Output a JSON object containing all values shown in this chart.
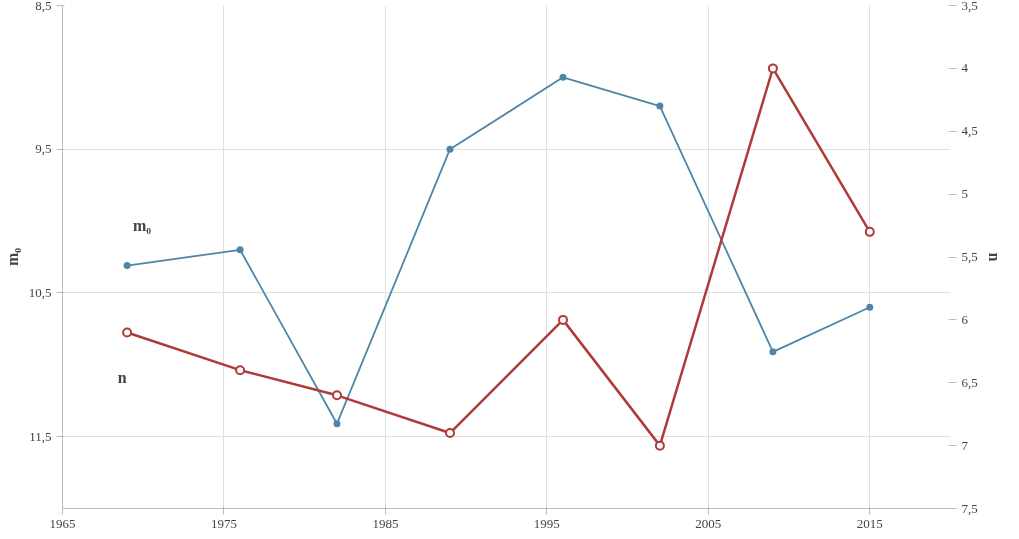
{
  "chart_data": {
    "type": "line",
    "ylabel": "m₀",
    "y2label": "n",
    "x": [
      1969,
      1976,
      1982,
      1989,
      1996,
      2002,
      2009,
      2015
    ],
    "series": [
      {
        "name": "m₀",
        "color": "#4f86a8",
        "values": [
          10.31,
          10.2,
          11.41,
          9.5,
          9.0,
          9.2,
          10.91,
          10.6
        ],
        "marker": "circle"
      },
      {
        "name": "n",
        "color": "#b03a3a",
        "values": [
          6.1,
          6.4,
          6.6,
          6.9,
          6.0,
          7.0,
          4.0,
          5.3
        ],
        "axis": "y2",
        "marker": "circle"
      }
    ],
    "xlim": [
      1965,
      2020
    ],
    "xticks": [
      1965,
      1975,
      1985,
      1995,
      2005,
      2015
    ],
    "ylim": [
      12,
      8.5
    ],
    "yticks": [
      {
        "value": 8.5,
        "label": "8,5"
      },
      {
        "value": 9.5,
        "label": "9,5"
      },
      {
        "value": 10.5,
        "label": "10,5"
      },
      {
        "value": 11.5,
        "label": "11,5"
      }
    ],
    "y2lim": [
      7.5,
      3.5
    ],
    "y2ticks": [
      {
        "value": 3.5,
        "label": "3,5"
      },
      4,
      {
        "value": 4.5,
        "label": "4,5"
      },
      5,
      {
        "value": 5.5,
        "label": "5,5"
      },
      6,
      {
        "value": 6.5,
        "label": "6,5"
      },
      7,
      {
        "value": 7.5,
        "label": "7,5"
      }
    ],
    "grid": true,
    "line_style": "solid"
  }
}
